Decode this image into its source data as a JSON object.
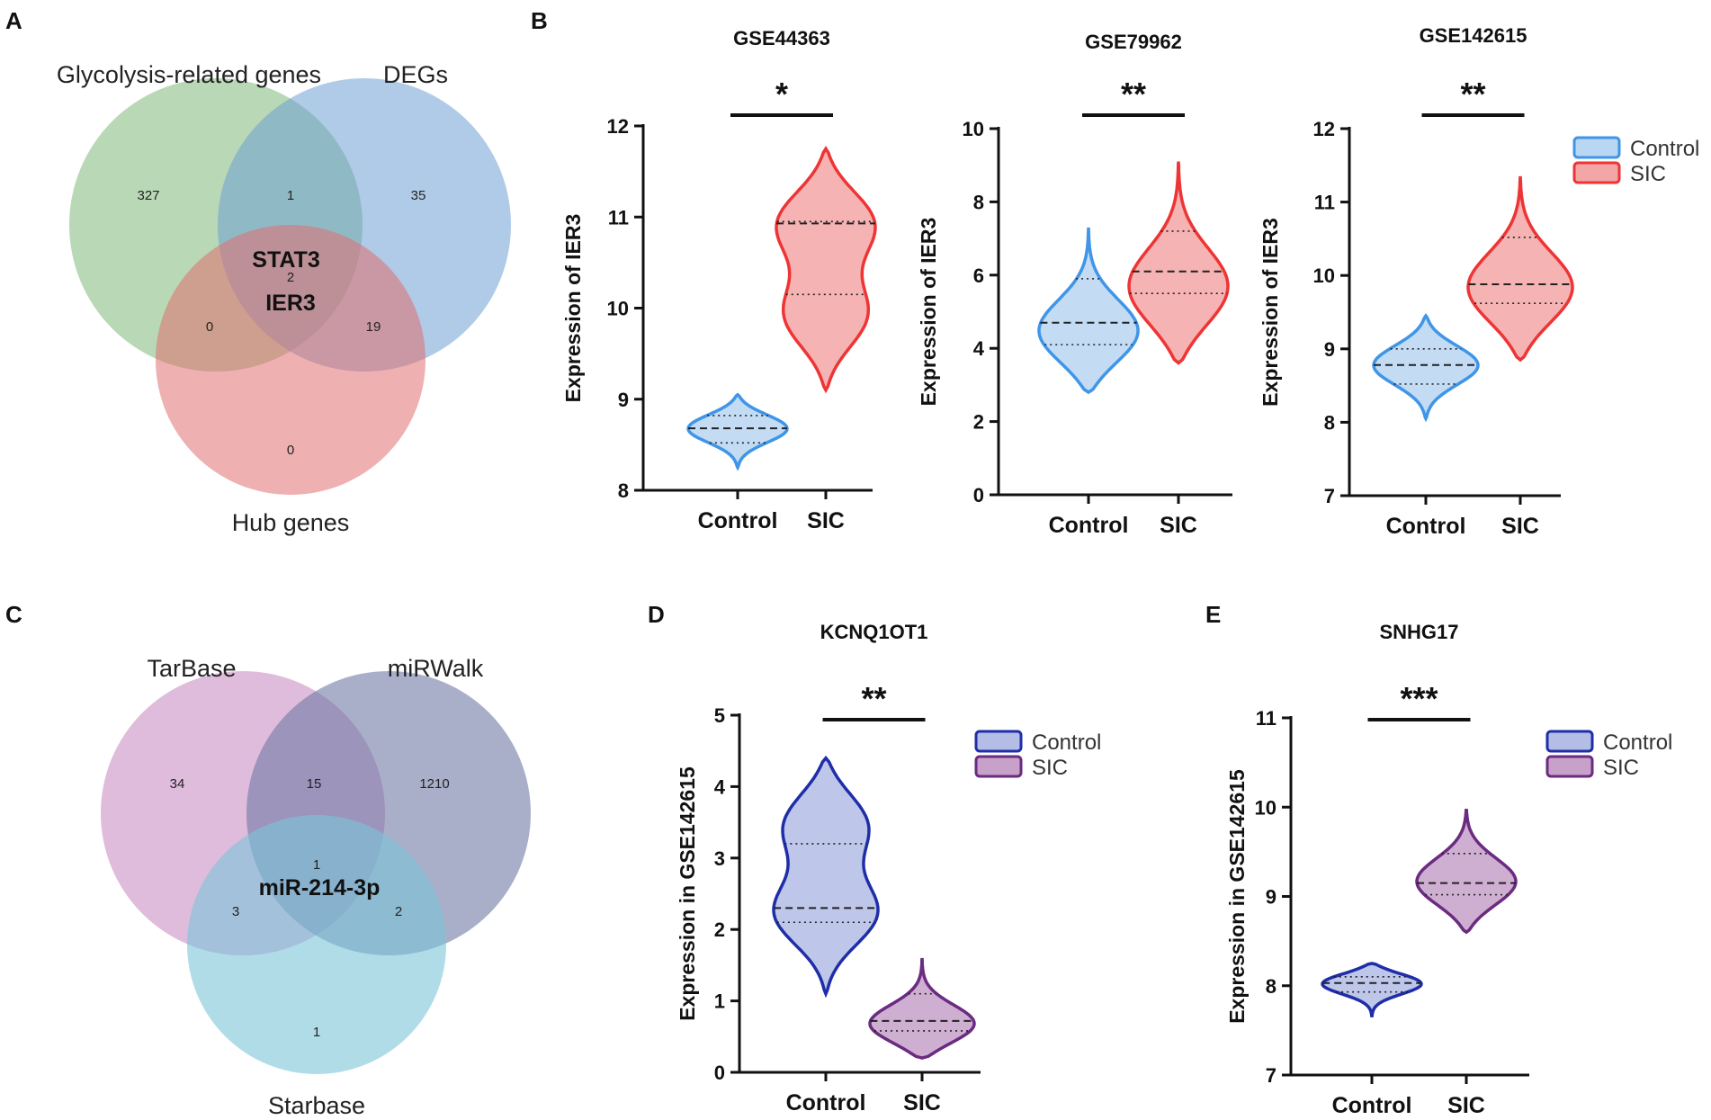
{
  "panels": {
    "A": "A",
    "B": "B",
    "C": "C",
    "D": "D",
    "E": "E"
  },
  "venn_A": {
    "sets": [
      {
        "name": "Glycolysis-related genes",
        "color": "#7fb87a"
      },
      {
        "name": "DEGs",
        "color": "#6fa0d3"
      },
      {
        "name": "Hub genes",
        "color": "#e06f6f"
      }
    ],
    "counts": {
      "only_glycolysis": "327",
      "glycolysis_degs": "1",
      "only_degs": "35",
      "all_three": "2",
      "glycolysis_hub": "0",
      "degs_hub": "19",
      "only_hub": "0"
    },
    "genes": [
      "STAT3",
      "IER3"
    ]
  },
  "venn_C": {
    "sets": [
      {
        "name": "TarBase",
        "color": "#c98fc3"
      },
      {
        "name": "miRWalk",
        "color": "#6f79a5"
      },
      {
        "name": "Starbase",
        "color": "#7cc4d8"
      }
    ],
    "counts": {
      "only_tarbase": "34",
      "tarbase_mirwalk": "15",
      "only_mirwalk": "1210",
      "all_three": "1",
      "tarbase_starbase": "3",
      "mirwalk_starbase": "2",
      "only_starbase": "1"
    },
    "mirna": "miR-214-3p"
  },
  "chart_data": [
    {
      "type": "violin",
      "panel": "B",
      "title": "GSE44363",
      "ylabel": "Expression of IER3",
      "ylim": [
        8,
        12
      ],
      "yticks": [
        "8",
        "9",
        "10",
        "11",
        "12"
      ],
      "categories": [
        "Control",
        "SIC"
      ],
      "significance": "*",
      "series": [
        {
          "name": "Control",
          "min": 8.25,
          "max": 9.05,
          "median": 8.68,
          "q1": 8.52,
          "q3": 8.82,
          "modes": [
            8.68
          ]
        },
        {
          "name": "SIC",
          "min": 9.1,
          "max": 11.75,
          "median": 10.93,
          "q1": 10.15,
          "q3": 10.95,
          "modes": [
            10.95,
            9.9
          ]
        }
      ]
    },
    {
      "type": "violin",
      "panel": "B",
      "title": "GSE79962",
      "ylabel": "Expression of IER3",
      "ylim": [
        0,
        10
      ],
      "yticks": [
        "0",
        "2",
        "4",
        "6",
        "8",
        "10"
      ],
      "categories": [
        "Control",
        "SIC"
      ],
      "significance": "**",
      "series": [
        {
          "name": "Control",
          "min": 2.8,
          "max": 7.3,
          "median": 4.7,
          "q1": 4.1,
          "q3": 5.9,
          "modes": [
            4.4
          ]
        },
        {
          "name": "SIC",
          "min": 3.6,
          "max": 9.1,
          "median": 6.1,
          "q1": 5.5,
          "q3": 7.2,
          "modes": [
            5.6
          ]
        }
      ]
    },
    {
      "type": "violin",
      "panel": "B",
      "title": "GSE142615",
      "ylabel": "Expression of IER3",
      "ylim": [
        7,
        12
      ],
      "yticks": [
        "7",
        "8",
        "9",
        "10",
        "11",
        "12"
      ],
      "categories": [
        "Control",
        "SIC"
      ],
      "significance": "**",
      "legend": [
        "Control",
        "SIC"
      ],
      "series": [
        {
          "name": "Control",
          "min": 8.05,
          "max": 9.45,
          "median": 8.78,
          "q1": 8.52,
          "q3": 9.0,
          "modes": [
            8.78
          ]
        },
        {
          "name": "SIC",
          "min": 8.85,
          "max": 11.35,
          "median": 9.88,
          "q1": 9.62,
          "q3": 10.52,
          "modes": [
            9.8
          ]
        }
      ]
    },
    {
      "type": "violin",
      "panel": "D",
      "title": "KCNQ1OT1",
      "ylabel": "Expression in GSE142615",
      "ylim": [
        0,
        5
      ],
      "yticks": [
        "0",
        "1",
        "2",
        "3",
        "4",
        "5"
      ],
      "categories": [
        "Control",
        "SIC"
      ],
      "significance": "**",
      "legend": [
        "Control",
        "SIC"
      ],
      "series": [
        {
          "name": "Control",
          "min": 1.1,
          "max": 4.4,
          "median": 2.3,
          "q1": 2.1,
          "q3": 3.2,
          "modes": [
            2.2,
            3.5
          ]
        },
        {
          "name": "SIC",
          "min": 0.2,
          "max": 1.6,
          "median": 0.72,
          "q1": 0.58,
          "q3": 1.1,
          "modes": [
            0.65
          ]
        }
      ]
    },
    {
      "type": "violin",
      "panel": "E",
      "title": "SNHG17",
      "ylabel": "Expression in GSE142615",
      "ylim": [
        7,
        11
      ],
      "yticks": [
        "7",
        "8",
        "9",
        "10",
        "11"
      ],
      "categories": [
        "Control",
        "SIC"
      ],
      "significance": "***",
      "legend": [
        "Control",
        "SIC"
      ],
      "series": [
        {
          "name": "Control",
          "min": 7.65,
          "max": 8.25,
          "median": 8.03,
          "q1": 7.93,
          "q3": 8.1,
          "modes": [
            8.03
          ]
        },
        {
          "name": "SIC",
          "min": 8.6,
          "max": 9.98,
          "median": 9.15,
          "q1": 9.02,
          "q3": 9.48,
          "modes": [
            9.15
          ]
        }
      ]
    }
  ],
  "colors": {
    "control_fill": "#b9d6f2",
    "control_line": "#3f95e8",
    "sic_fill": "#f3a6a6",
    "sic_line": "#ee3434",
    "control_dark_fill": "#b3bde6",
    "control_dark_line": "#1f2ea8",
    "sic_purple_fill": "#c7a1c9",
    "sic_purple_line": "#6a2b80"
  }
}
